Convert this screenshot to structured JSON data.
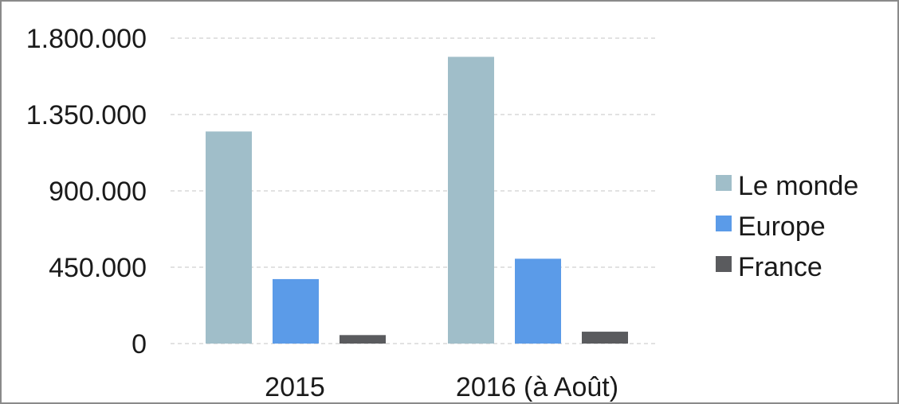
{
  "chart_data": {
    "type": "bar",
    "categories": [
      "2015",
      "2016 (à Août)"
    ],
    "series": [
      {
        "name": "Le monde",
        "values": [
          1250000,
          1690000
        ],
        "color": "#a0bec9"
      },
      {
        "name": "Europe",
        "values": [
          380000,
          500000
        ],
        "color": "#5b9be8"
      },
      {
        "name": "France",
        "values": [
          50000,
          70000
        ],
        "color": "#5a5b5e"
      }
    ],
    "ylim": [
      0,
      1800000
    ],
    "yticks": [
      0,
      450000,
      900000,
      1350000,
      1800000
    ],
    "ytick_labels": [
      "0",
      "450.000",
      "900.000",
      "1.350.000",
      "1.800.000"
    ],
    "grid": "horizontal-dashed",
    "legend_position": "right"
  }
}
